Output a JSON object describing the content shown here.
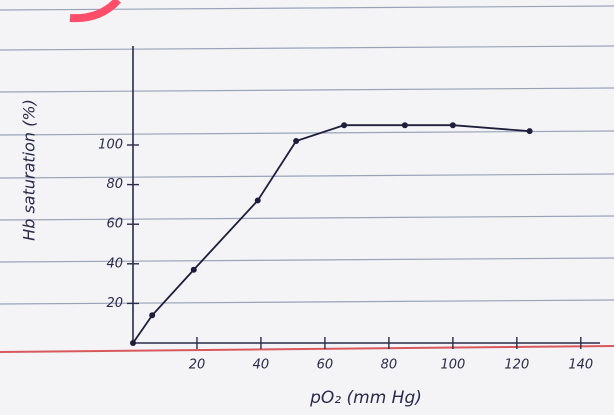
{
  "chart_data": {
    "type": "line",
    "x_label": "pO₂ (mm Hg)",
    "y_label": "Hb saturation (%)",
    "x": [
      0,
      6,
      19,
      39,
      51,
      66,
      85,
      100,
      124
    ],
    "series": [
      {
        "color": "#1e1e3c",
        "values": [
          0,
          14,
          37,
          72,
          102,
          110,
          110,
          110,
          107
        ]
      }
    ],
    "xlim": [
      0,
      146
    ],
    "ylim": [
      0,
      150
    ],
    "xticks": [
      20,
      40,
      60,
      80,
      100,
      120,
      140
    ],
    "yticks": [
      20,
      40,
      60,
      80,
      100
    ]
  }
}
